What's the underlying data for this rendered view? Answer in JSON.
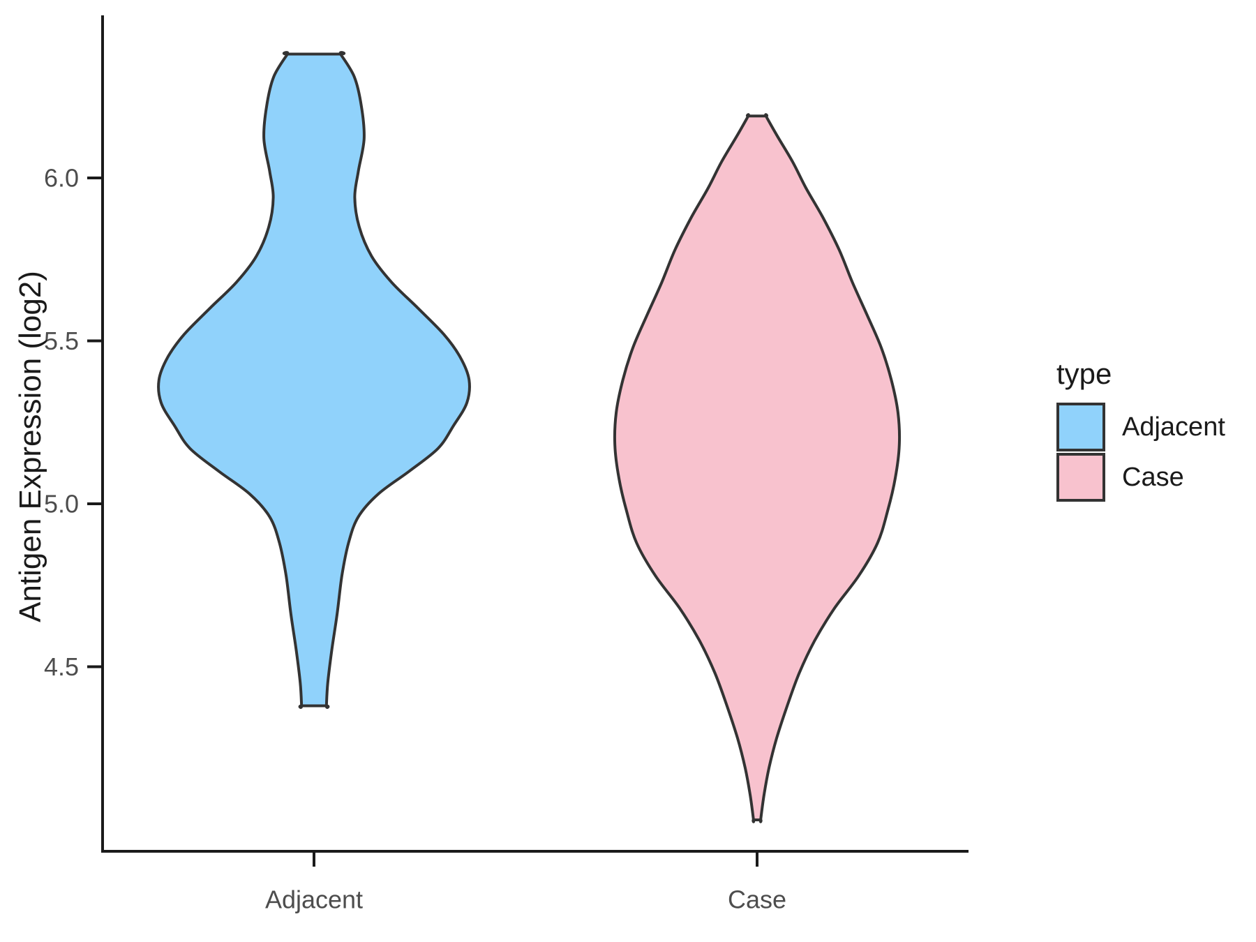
{
  "figure": {
    "background": "#FFFFFF"
  },
  "colors": {
    "axis_line": "#1A1A1A",
    "axis_text": "#4D4D4D",
    "violin_outline": "#333333",
    "adjacent_fill": "#90D2FB",
    "case_fill": "#F8C2CE"
  },
  "chart_data": {
    "type": "violin",
    "title": "",
    "xlabel": "",
    "ylabel": "Antigen Expression (log2)",
    "categories": [
      "Adjacent",
      "Case"
    ],
    "y_ticks": [
      {
        "v": 4.5,
        "label": "4.5"
      },
      {
        "v": 5.0,
        "label": "5.0"
      },
      {
        "v": 5.5,
        "label": "5.5"
      },
      {
        "v": 6.0,
        "label": "6.0"
      }
    ],
    "ylim": [
      3.93,
      6.5
    ],
    "grid": false,
    "legend": {
      "title": "type",
      "position": "right",
      "entries": [
        {
          "label": "Adjacent",
          "color": "#90D2FB"
        },
        {
          "label": "Case",
          "color": "#F8C2CE"
        }
      ]
    },
    "series": [
      {
        "name": "Adjacent",
        "fill": "#90D2FB",
        "outline": "#333333",
        "min": 4.38,
        "max": 6.38,
        "mode": 5.38,
        "profile": [
          {
            "v": 6.38,
            "w": 0.06
          },
          {
            "v": 6.31,
            "w": 0.091
          },
          {
            "v": 6.22,
            "w": 0.107
          },
          {
            "v": 6.12,
            "w": 0.113
          },
          {
            "v": 6.02,
            "w": 0.1
          },
          {
            "v": 5.94,
            "w": 0.092
          },
          {
            "v": 5.85,
            "w": 0.102
          },
          {
            "v": 5.76,
            "w": 0.13
          },
          {
            "v": 5.68,
            "w": 0.175
          },
          {
            "v": 5.6,
            "w": 0.235
          },
          {
            "v": 5.52,
            "w": 0.293
          },
          {
            "v": 5.45,
            "w": 0.33
          },
          {
            "v": 5.38,
            "w": 0.35
          },
          {
            "v": 5.31,
            "w": 0.345
          },
          {
            "v": 5.24,
            "w": 0.315
          },
          {
            "v": 5.17,
            "w": 0.28
          },
          {
            "v": 5.1,
            "w": 0.215
          },
          {
            "v": 5.03,
            "w": 0.145
          },
          {
            "v": 4.96,
            "w": 0.1
          },
          {
            "v": 4.88,
            "w": 0.078
          },
          {
            "v": 4.78,
            "w": 0.063
          },
          {
            "v": 4.66,
            "w": 0.052
          },
          {
            "v": 4.55,
            "w": 0.04
          },
          {
            "v": 4.45,
            "w": 0.031
          },
          {
            "v": 4.38,
            "w": 0.028
          }
        ]
      },
      {
        "name": "Case",
        "fill": "#F8C2CE",
        "outline": "#333333",
        "min": 4.03,
        "max": 6.19,
        "mode": 5.18,
        "profile": [
          {
            "v": 6.19,
            "w": 0.02
          },
          {
            "v": 6.13,
            "w": 0.045
          },
          {
            "v": 6.05,
            "w": 0.08
          },
          {
            "v": 5.97,
            "w": 0.11
          },
          {
            "v": 5.88,
            "w": 0.148
          },
          {
            "v": 5.78,
            "w": 0.185
          },
          {
            "v": 5.68,
            "w": 0.215
          },
          {
            "v": 5.58,
            "w": 0.248
          },
          {
            "v": 5.48,
            "w": 0.28
          },
          {
            "v": 5.38,
            "w": 0.303
          },
          {
            "v": 5.28,
            "w": 0.318
          },
          {
            "v": 5.18,
            "w": 0.321
          },
          {
            "v": 5.08,
            "w": 0.312
          },
          {
            "v": 4.98,
            "w": 0.295
          },
          {
            "v": 4.88,
            "w": 0.272
          },
          {
            "v": 4.78,
            "w": 0.23
          },
          {
            "v": 4.68,
            "w": 0.175
          },
          {
            "v": 4.58,
            "w": 0.13
          },
          {
            "v": 4.48,
            "w": 0.095
          },
          {
            "v": 4.38,
            "w": 0.068
          },
          {
            "v": 4.28,
            "w": 0.044
          },
          {
            "v": 4.19,
            "w": 0.027
          },
          {
            "v": 4.11,
            "w": 0.016
          },
          {
            "v": 4.03,
            "w": 0.008
          }
        ]
      }
    ]
  }
}
